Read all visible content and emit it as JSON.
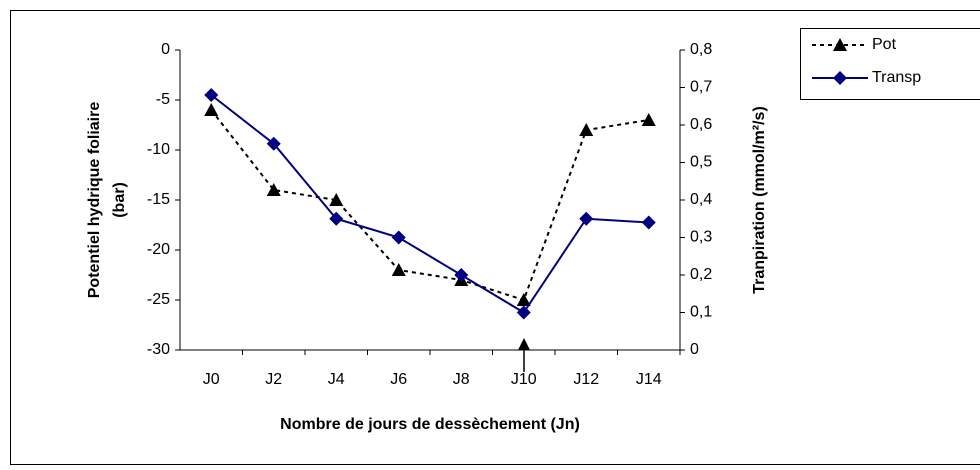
{
  "chart_data": {
    "type": "line",
    "xlabel": "Nombre de jours de dessèchement (Jn)",
    "ylabel": [
      "Potentiel hydrique foliaire",
      "(bar)"
    ],
    "y2label": "Tranpiration (mmol/m²/s)",
    "categories": [
      "J0",
      "J2",
      "J4",
      "J6",
      "J8",
      "J10",
      "J12",
      "J14"
    ],
    "series": [
      {
        "name": "Pot",
        "color": "#000000",
        "marker": "triangle",
        "dash": true,
        "axis": "y",
        "values": [
          -6,
          -14,
          -15,
          -22,
          -23,
          -25,
          -8,
          -7
        ]
      },
      {
        "name": "Transp",
        "color": "#000080",
        "marker": "diamond",
        "dash": false,
        "axis": "y2",
        "values": [
          0.68,
          0.55,
          0.35,
          0.3,
          0.2,
          0.1,
          0.35,
          0.34
        ]
      }
    ],
    "ylim": [
      -30,
      0
    ],
    "yticks": [
      0,
      -5,
      -10,
      -15,
      -20,
      -25,
      -30
    ],
    "y2lim": [
      0,
      0.8
    ],
    "y2ticks": [
      {
        "value": 0.8,
        "label": "0,8"
      },
      {
        "value": 0.7,
        "label": "0,7"
      },
      {
        "value": 0.6,
        "label": "0,6"
      },
      {
        "value": 0.5,
        "label": "0,5"
      },
      {
        "value": 0.4,
        "label": "0,4"
      },
      {
        "value": 0.3,
        "label": "0,3"
      },
      {
        "value": 0.2,
        "label": "0,2"
      },
      {
        "value": 0.1,
        "label": "0,1"
      },
      0
    ],
    "legend": "right"
  }
}
